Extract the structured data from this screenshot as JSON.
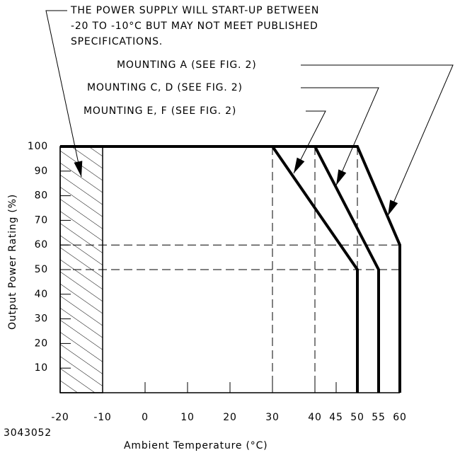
{
  "chart_data": {
    "type": "line",
    "note": [
      "THE POWER SUPPLY WILL START-UP BETWEEN",
      "-20 TO -10°C BUT MAY NOT MEET PUBLISHED",
      "SPECIFICATIONS."
    ],
    "xlabel": "Ambient Temperature (°C)",
    "ylabel": "Output Power Rating (%)",
    "figure_id": "3043052",
    "xlim": [
      -20,
      60
    ],
    "ylim": [
      0,
      100
    ],
    "xticks": [
      -20,
      -10,
      0,
      10,
      20,
      30,
      40,
      45,
      50,
      55,
      60
    ],
    "yticks": [
      10,
      20,
      30,
      40,
      50,
      60,
      70,
      80,
      90,
      100
    ],
    "shaded_range": [
      -20,
      -10
    ],
    "vlines": [
      30,
      40,
      50
    ],
    "hlines": [
      60,
      50
    ],
    "series": [
      {
        "name": "MOUNTING A (SEE FIG. 2)",
        "color": "#000000",
        "x": [
          -20,
          50,
          60,
          60
        ],
        "values": [
          100,
          100,
          60,
          0
        ]
      },
      {
        "name": "MOUNTING C, D (SEE FIG. 2)",
        "color": "#000000",
        "x": [
          -20,
          40,
          55,
          55
        ],
        "values": [
          100,
          100,
          50,
          0
        ]
      },
      {
        "name": "MOUNTING E, F (SEE FIG. 2)",
        "color": "#000000",
        "x": [
          -20,
          30,
          50,
          50
        ],
        "values": [
          100,
          100,
          50,
          0
        ]
      }
    ]
  }
}
